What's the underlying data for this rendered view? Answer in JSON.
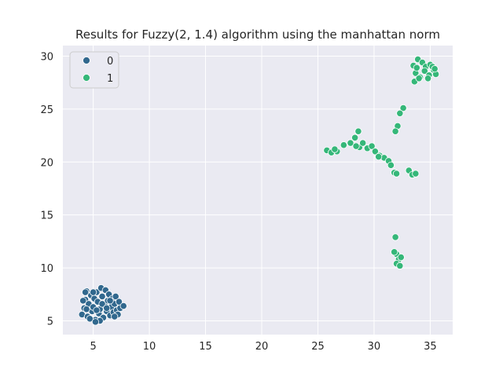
{
  "chart_data": {
    "type": "scatter",
    "title": "Results for Fuzzy(2, 1.4) algorithm using the manhattan norm",
    "xlabel": "",
    "ylabel": "",
    "xlim": [
      2.3,
      37.0
    ],
    "ylim": [
      3.7,
      31.0
    ],
    "xticks": [
      5,
      10,
      15,
      20,
      25,
      30,
      35
    ],
    "yticks": [
      5,
      10,
      15,
      20,
      25,
      30
    ],
    "grid": true,
    "legend_position": "top-left",
    "series": [
      {
        "name": "0",
        "color": "#31688e",
        "points": [
          [
            4.0,
            5.6
          ],
          [
            4.2,
            6.2
          ],
          [
            4.3,
            7.0
          ],
          [
            4.4,
            7.8
          ],
          [
            4.5,
            5.4
          ],
          [
            4.6,
            6.6
          ],
          [
            4.8,
            7.4
          ],
          [
            4.9,
            5.9
          ],
          [
            5.0,
            6.3
          ],
          [
            5.1,
            7.1
          ],
          [
            5.2,
            5.1
          ],
          [
            5.3,
            7.7
          ],
          [
            5.4,
            6.8
          ],
          [
            5.5,
            5.7
          ],
          [
            5.6,
            6.1
          ],
          [
            5.7,
            8.1
          ],
          [
            5.8,
            7.3
          ],
          [
            5.9,
            5.3
          ],
          [
            6.0,
            6.5
          ],
          [
            6.1,
            7.9
          ],
          [
            6.2,
            5.9
          ],
          [
            6.3,
            6.9
          ],
          [
            6.4,
            7.5
          ],
          [
            6.5,
            5.5
          ],
          [
            6.6,
            6.3
          ],
          [
            6.7,
            7.1
          ],
          [
            6.8,
            5.8
          ],
          [
            6.9,
            6.6
          ],
          [
            7.0,
            7.3
          ],
          [
            7.1,
            6.0
          ],
          [
            7.2,
            5.6
          ],
          [
            7.3,
            6.8
          ],
          [
            7.4,
            6.2
          ],
          [
            7.7,
            6.4
          ],
          [
            4.1,
            6.9
          ],
          [
            4.7,
            5.2
          ],
          [
            5.3,
            6.0
          ],
          [
            5.8,
            6.6
          ],
          [
            6.2,
            6.2
          ],
          [
            5.0,
            7.7
          ],
          [
            6.5,
            6.9
          ],
          [
            4.4,
            6.1
          ],
          [
            5.6,
            5.0
          ],
          [
            5.2,
            4.9
          ],
          [
            6.9,
            5.4
          ],
          [
            4.3,
            7.7
          ]
        ]
      },
      {
        "name": "1",
        "color": "#35b779",
        "points": [
          [
            33.5,
            29.1
          ],
          [
            33.9,
            29.7
          ],
          [
            34.3,
            29.4
          ],
          [
            34.6,
            29.0
          ],
          [
            35.0,
            29.2
          ],
          [
            35.3,
            28.7
          ],
          [
            35.5,
            28.3
          ],
          [
            33.7,
            28.4
          ],
          [
            34.1,
            28.0
          ],
          [
            34.5,
            28.6
          ],
          [
            34.9,
            28.2
          ],
          [
            33.6,
            27.6
          ],
          [
            34.0,
            27.9
          ],
          [
            35.2,
            29.0
          ],
          [
            33.8,
            28.9
          ],
          [
            34.8,
            27.9
          ],
          [
            35.4,
            28.8
          ],
          [
            32.6,
            25.1
          ],
          [
            32.3,
            24.6
          ],
          [
            32.1,
            23.4
          ],
          [
            31.9,
            22.9
          ],
          [
            25.8,
            21.1
          ],
          [
            26.2,
            20.9
          ],
          [
            26.7,
            21.0
          ],
          [
            27.3,
            21.6
          ],
          [
            27.9,
            21.8
          ],
          [
            28.3,
            22.3
          ],
          [
            28.6,
            22.9
          ],
          [
            28.7,
            21.4
          ],
          [
            29.0,
            21.8
          ],
          [
            29.4,
            21.3
          ],
          [
            29.8,
            21.5
          ],
          [
            30.1,
            21.0
          ],
          [
            30.5,
            20.6
          ],
          [
            30.9,
            20.4
          ],
          [
            31.3,
            20.1
          ],
          [
            31.5,
            19.7
          ],
          [
            31.8,
            19.0
          ],
          [
            32.0,
            18.9
          ],
          [
            33.1,
            19.2
          ],
          [
            33.4,
            18.8
          ],
          [
            33.7,
            18.9
          ],
          [
            28.4,
            21.5
          ],
          [
            30.4,
            20.5
          ],
          [
            26.5,
            21.2
          ],
          [
            31.9,
            12.9
          ],
          [
            32.0,
            11.3
          ],
          [
            32.2,
            10.8
          ],
          [
            32.4,
            11.0
          ],
          [
            32.0,
            10.4
          ],
          [
            32.3,
            10.2
          ],
          [
            31.8,
            11.5
          ]
        ]
      }
    ]
  }
}
